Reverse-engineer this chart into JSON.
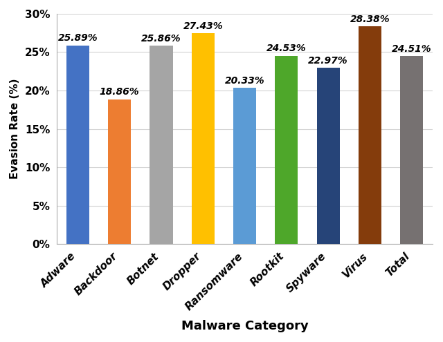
{
  "categories": [
    "Adware",
    "Backdoor",
    "Botnet",
    "Dropper",
    "Ransomware",
    "Rootkit",
    "Spyware",
    "Virus",
    "Total"
  ],
  "values": [
    25.89,
    18.86,
    25.86,
    27.43,
    20.33,
    24.53,
    22.97,
    28.38,
    24.51
  ],
  "bar_colors": [
    "#4472C4",
    "#ED7D31",
    "#A5A5A5",
    "#FFC000",
    "#5B9BD5",
    "#4EA72A",
    "#264478",
    "#843C0C",
    "#767171"
  ],
  "xlabel": "Malware Category",
  "ylabel": "Evasion Rate (%)",
  "ylim": [
    0,
    30
  ],
  "yticks": [
    0,
    5,
    10,
    15,
    20,
    25,
    30
  ],
  "ytick_labels": [
    "0%",
    "5%",
    "10%",
    "15%",
    "20%",
    "25%",
    "30%"
  ],
  "tick_fontsize": 11,
  "bar_label_fontsize": 10,
  "xlabel_fontsize": 13,
  "ylabel_fontsize": 11,
  "background_color": "#ffffff",
  "grid_color": "#d3d3d3"
}
